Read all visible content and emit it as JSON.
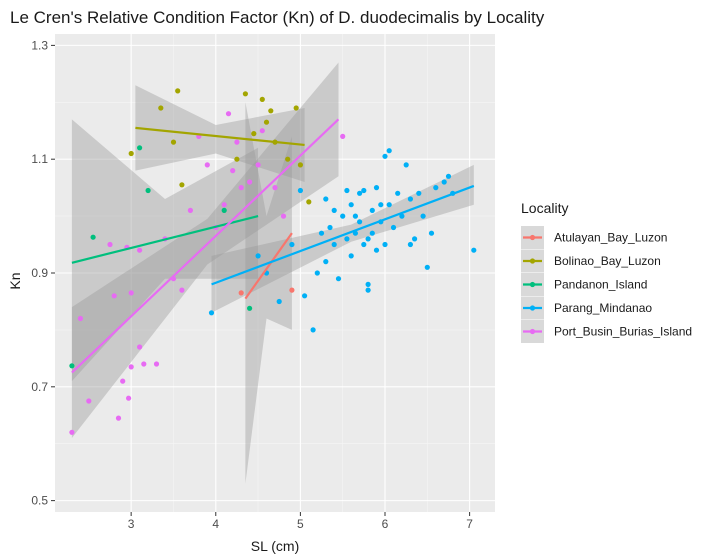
{
  "chart_data": {
    "type": "scatter",
    "title": "Le Cren's Relative Condition Factor (Kn) of D. duodecimalis by Locality",
    "xlabel": "SL (cm)",
    "ylabel": "Kn",
    "xlim": [
      2.1,
      7.3
    ],
    "ylim": [
      0.48,
      1.32
    ],
    "x_ticks": [
      3,
      4,
      5,
      6,
      7
    ],
    "y_ticks": [
      0.5,
      0.7,
      0.9,
      1.1,
      1.3
    ],
    "x_tick_labels": [
      "3",
      "4",
      "5",
      "6",
      "7"
    ],
    "y_tick_labels": [
      "0.5",
      "0.7",
      "0.9",
      "1.1",
      "1.3"
    ],
    "grid": true,
    "legend": {
      "title": "Locality",
      "position": "right"
    },
    "series": [
      {
        "name": "Atulayan_Bay_Luzon",
        "color": "#F8766D",
        "points": [
          [
            4.3,
            0.865
          ],
          [
            4.9,
            0.87
          ]
        ],
        "fit": {
          "x": [
            4.35,
            4.9
          ],
          "y": [
            0.855,
            0.97
          ]
        },
        "band": {
          "x": [
            4.35,
            4.6,
            4.9
          ],
          "lower": [
            0.53,
            0.82,
            0.8
          ],
          "upper": [
            1.2,
            1.0,
            1.14
          ]
        }
      },
      {
        "name": "Bolinao_Bay_Luzon",
        "color": "#A3A500",
        "points": [
          [
            3.0,
            1.11
          ],
          [
            3.35,
            1.19
          ],
          [
            3.5,
            1.13
          ],
          [
            3.55,
            1.22
          ],
          [
            3.6,
            1.055
          ],
          [
            4.25,
            1.1
          ],
          [
            4.35,
            1.215
          ],
          [
            4.45,
            1.145
          ],
          [
            4.55,
            1.205
          ],
          [
            4.6,
            1.165
          ],
          [
            4.65,
            1.185
          ],
          [
            4.7,
            1.13
          ],
          [
            4.85,
            1.1
          ],
          [
            4.95,
            1.19
          ],
          [
            5.1,
            1.025
          ],
          [
            5.0,
            1.09
          ]
        ],
        "fit": {
          "x": [
            3.05,
            5.05
          ],
          "y": [
            1.155,
            1.125
          ]
        },
        "band": {
          "x": [
            3.05,
            4.0,
            5.05
          ],
          "lower": [
            1.08,
            1.11,
            1.06
          ],
          "upper": [
            1.23,
            1.16,
            1.19
          ]
        }
      },
      {
        "name": "Pandanon_Island",
        "color": "#00BF7D",
        "points": [
          [
            2.3,
            0.737
          ],
          [
            2.55,
            0.963
          ],
          [
            3.1,
            1.12
          ],
          [
            3.2,
            1.045
          ],
          [
            4.1,
            1.01
          ],
          [
            4.4,
            0.838
          ]
        ],
        "fit": {
          "x": [
            2.3,
            4.5
          ],
          "y": [
            0.918,
            1.0
          ]
        },
        "band": {
          "x": [
            2.3,
            3.4,
            4.5
          ],
          "lower": [
            0.71,
            0.89,
            0.89
          ],
          "upper": [
            1.17,
            1.03,
            1.12
          ]
        }
      },
      {
        "name": "Parang_Mindanao",
        "color": "#00B0F6",
        "points": [
          [
            3.95,
            0.83
          ],
          [
            4.5,
            0.93
          ],
          [
            4.6,
            0.9
          ],
          [
            4.75,
            0.85
          ],
          [
            4.9,
            0.95
          ],
          [
            5.0,
            1.045
          ],
          [
            5.05,
            0.86
          ],
          [
            5.15,
            0.8
          ],
          [
            5.2,
            0.9
          ],
          [
            5.25,
            0.97
          ],
          [
            5.3,
            0.92
          ],
          [
            5.3,
            1.03
          ],
          [
            5.35,
            0.98
          ],
          [
            5.4,
            0.95
          ],
          [
            5.4,
            1.01
          ],
          [
            5.45,
            0.89
          ],
          [
            5.5,
            1.0
          ],
          [
            5.55,
            1.045
          ],
          [
            5.55,
            0.96
          ],
          [
            5.6,
            0.93
          ],
          [
            5.6,
            1.02
          ],
          [
            5.65,
            1.0
          ],
          [
            5.65,
            0.97
          ],
          [
            5.7,
            1.04
          ],
          [
            5.7,
            0.99
          ],
          [
            5.75,
            1.045
          ],
          [
            5.75,
            0.95
          ],
          [
            5.8,
            0.88
          ],
          [
            5.8,
            0.87
          ],
          [
            5.8,
            0.96
          ],
          [
            5.85,
            1.01
          ],
          [
            5.85,
            0.97
          ],
          [
            5.9,
            1.05
          ],
          [
            5.9,
            0.94
          ],
          [
            5.95,
            0.99
          ],
          [
            5.95,
            1.02
          ],
          [
            6.0,
            1.105
          ],
          [
            6.0,
            0.95
          ],
          [
            6.05,
            1.115
          ],
          [
            6.05,
            1.02
          ],
          [
            6.1,
            0.98
          ],
          [
            6.15,
            1.04
          ],
          [
            6.2,
            1.0
          ],
          [
            6.25,
            1.09
          ],
          [
            6.3,
            1.03
          ],
          [
            6.3,
            0.95
          ],
          [
            6.35,
            0.96
          ],
          [
            6.4,
            1.04
          ],
          [
            6.45,
            1.0
          ],
          [
            6.5,
            0.91
          ],
          [
            6.55,
            0.97
          ],
          [
            6.6,
            1.05
          ],
          [
            6.7,
            1.06
          ],
          [
            6.75,
            1.07
          ],
          [
            6.8,
            1.04
          ],
          [
            7.05,
            0.94
          ]
        ],
        "fit": {
          "x": [
            3.95,
            7.05
          ],
          "y": [
            0.88,
            1.053
          ]
        },
        "band": {
          "x": [
            3.95,
            5.6,
            7.05
          ],
          "lower": [
            0.83,
            0.955,
            1.02
          ],
          "upper": [
            0.93,
            0.985,
            1.09
          ]
        }
      },
      {
        "name": "Port_Busin_Burias_Island",
        "color": "#E76BF3",
        "points": [
          [
            2.3,
            0.62
          ],
          [
            2.4,
            0.82
          ],
          [
            2.5,
            0.675
          ],
          [
            2.75,
            0.95
          ],
          [
            2.8,
            0.86
          ],
          [
            2.85,
            0.645
          ],
          [
            2.9,
            0.71
          ],
          [
            2.95,
            0.945
          ],
          [
            2.97,
            0.68
          ],
          [
            3.0,
            0.735
          ],
          [
            3.0,
            0.865
          ],
          [
            3.1,
            0.77
          ],
          [
            3.1,
            0.94
          ],
          [
            3.15,
            0.74
          ],
          [
            3.3,
            0.74
          ],
          [
            3.4,
            0.96
          ],
          [
            3.5,
            0.89
          ],
          [
            3.6,
            0.87
          ],
          [
            3.7,
            1.01
          ],
          [
            3.8,
            1.14
          ],
          [
            3.9,
            1.09
          ],
          [
            4.0,
            0.98
          ],
          [
            4.1,
            1.02
          ],
          [
            4.15,
            1.18
          ],
          [
            4.2,
            1.08
          ],
          [
            4.25,
            1.13
          ],
          [
            4.3,
            1.05
          ],
          [
            4.4,
            1.06
          ],
          [
            4.5,
            1.09
          ],
          [
            4.55,
            1.15
          ],
          [
            4.7,
            1.05
          ],
          [
            4.8,
            1.0
          ],
          [
            5.5,
            1.14
          ]
        ],
        "fit": {
          "x": [
            2.3,
            5.45
          ],
          "y": [
            0.725,
            1.17
          ]
        },
        "band": {
          "x": [
            2.3,
            3.9,
            5.45
          ],
          "lower": [
            0.61,
            0.915,
            1.07
          ],
          "upper": [
            0.84,
            0.995,
            1.27
          ]
        }
      }
    ]
  }
}
